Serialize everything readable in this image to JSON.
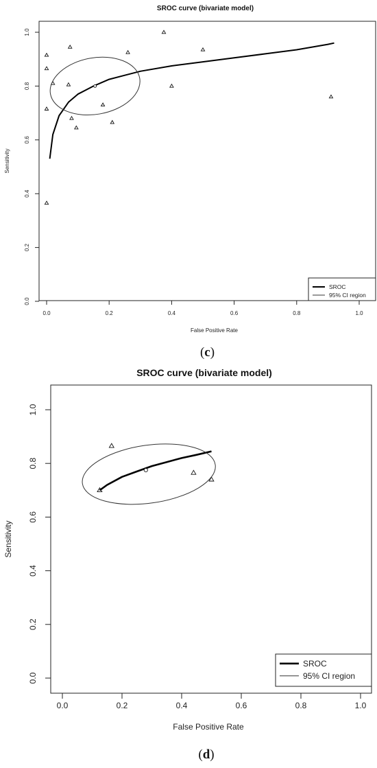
{
  "panels": [
    {
      "label": "(c)",
      "label_letter": "c",
      "chart_data": {
        "type": "scatter",
        "title": "SROC curve (bivariate model)",
        "xlabel": "False Positive Rate",
        "ylabel": "Sensitivity",
        "xlim": [
          0,
          1
        ],
        "ylim": [
          0,
          1
        ],
        "x_ticks": [
          "0.0",
          "0.2",
          "0.4",
          "0.6",
          "0.8",
          "1.0"
        ],
        "y_ticks": [
          "0.0",
          "0.2",
          "0.4",
          "0.6",
          "0.8",
          "1.0"
        ],
        "grid": false,
        "legend_position": "bottom-right",
        "legend": [
          "SROC",
          "95% CI region"
        ],
        "series": [
          {
            "name": "Studies",
            "marker": "triangle",
            "x": [
              0.0,
              0.0,
              0.02,
              0.0,
              0.0,
              0.075,
              0.07,
              0.08,
              0.095,
              0.18,
              0.21,
              0.26,
              0.375,
              0.4,
              0.5,
              0.91
            ],
            "y": [
              0.915,
              0.865,
              0.81,
              0.715,
              0.365,
              0.945,
              0.805,
              0.68,
              0.645,
              0.73,
              0.665,
              0.925,
              1.0,
              0.8,
              0.935,
              0.76
            ]
          },
          {
            "name": "SROC",
            "type": "line",
            "x": [
              0.01,
              0.02,
              0.04,
              0.07,
              0.1,
              0.15,
              0.2,
              0.25,
              0.3,
              0.4,
              0.5,
              0.6,
              0.7,
              0.8,
              0.9,
              0.92
            ],
            "y": [
              0.53,
              0.62,
              0.69,
              0.74,
              0.77,
              0.8,
              0.825,
              0.84,
              0.855,
              0.875,
              0.89,
              0.905,
              0.92,
              0.935,
              0.955,
              0.96
            ]
          },
          {
            "name": "95% CI region",
            "type": "ellipse",
            "center": [
              0.155,
              0.8
            ],
            "semi_axis_x": 0.145,
            "semi_axis_y": 0.105,
            "tilt_deg": -10
          },
          {
            "name": "Summary point",
            "marker": "circle",
            "x": [
              0.155
            ],
            "y": [
              0.8
            ]
          }
        ]
      }
    },
    {
      "label": "(d)",
      "label_letter": "d",
      "chart_data": {
        "type": "scatter",
        "title": "SROC curve (bivariate model)",
        "xlabel": "False Positive Rate",
        "ylabel": "Sensitivity",
        "xlim": [
          0,
          1
        ],
        "ylim": [
          0,
          1
        ],
        "x_ticks": [
          "0.0",
          "0.2",
          "0.4",
          "0.6",
          "0.8",
          "1.0"
        ],
        "y_ticks": [
          "0.0",
          "0.2",
          "0.4",
          "0.6",
          "0.8",
          "1.0"
        ],
        "grid": false,
        "legend_position": "bottom-right",
        "legend": [
          "SROC",
          "95% CI region"
        ],
        "series": [
          {
            "name": "Studies",
            "marker": "triangle",
            "x": [
              0.125,
              0.165,
              0.44,
              0.5
            ],
            "y": [
              0.7,
              0.865,
              0.765,
              0.74
            ]
          },
          {
            "name": "SROC",
            "type": "line",
            "x": [
              0.125,
              0.15,
              0.2,
              0.25,
              0.3,
              0.35,
              0.4,
              0.45,
              0.5
            ],
            "y": [
              0.7,
              0.72,
              0.75,
              0.77,
              0.79,
              0.805,
              0.82,
              0.832,
              0.845
            ]
          },
          {
            "name": "95% CI region",
            "type": "ellipse",
            "center": [
              0.29,
              0.76
            ],
            "semi_axis_x": 0.225,
            "semi_axis_y": 0.108,
            "tilt_deg": -8
          },
          {
            "name": "Summary point",
            "marker": "circle",
            "x": [
              0.28
            ],
            "y": [
              0.775
            ]
          }
        ]
      }
    }
  ]
}
